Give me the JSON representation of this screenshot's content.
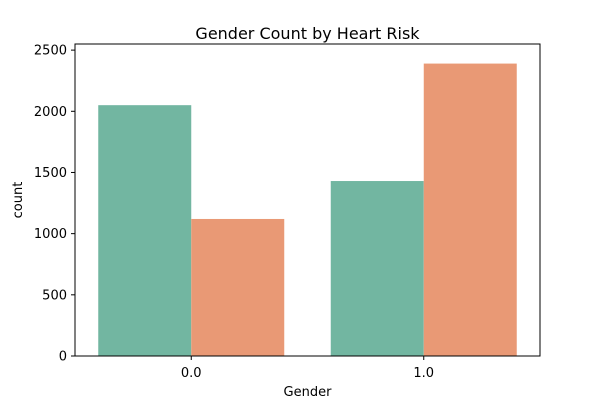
{
  "chart_data": {
    "type": "bar",
    "title": "Gender Count by Heart Risk",
    "xlabel": "Gender",
    "ylabel": "count",
    "categories": [
      "0.0",
      "1.0"
    ],
    "series": [
      {
        "values": [
          2050,
          1430
        ],
        "color": "#72b6a1"
      },
      {
        "values": [
          1120,
          2390
        ],
        "color": "#e99975"
      }
    ],
    "ylim": [
      0,
      2550
    ],
    "yticks": [
      0,
      500,
      1000,
      1500,
      2000,
      2500
    ],
    "grid": false,
    "legend": "none"
  }
}
